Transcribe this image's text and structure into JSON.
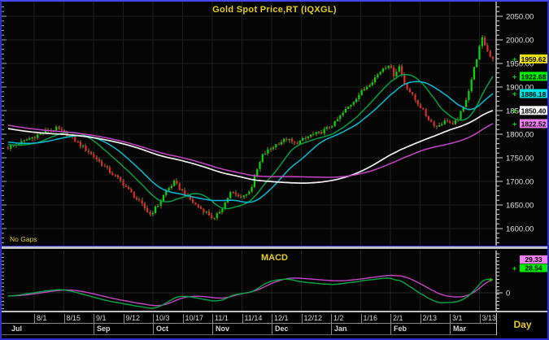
{
  "header": {
    "title": "Gold Spot Price,RT (IQXGL)"
  },
  "main_chart": {
    "no_gaps_label": "No Gaps",
    "price_axis": {
      "labels": [
        "2050.00",
        "2000.00",
        "1950.00",
        "1900.00",
        "1850.00",
        "1800.00",
        "1750.00",
        "1700.00",
        "1650.00",
        "1600.00"
      ],
      "values": [
        2050,
        2000,
        1950,
        1900,
        1850,
        1800,
        1750,
        1700,
        1650,
        1600
      ]
    },
    "badges": [
      {
        "name": "last-price-badge",
        "label": "1959.62",
        "price": 1959.62,
        "color": "#F2E200"
      },
      {
        "name": "ma-fast-badge",
        "label": "1922.68",
        "price": 1922.68,
        "color": "#00EE00"
      },
      {
        "name": "ma-medium-badge",
        "label": "1886.18",
        "price": 1886.18,
        "color": "#00E4E4"
      },
      {
        "name": "ma-slow-badge",
        "label": "1850.40",
        "price": 1850.4,
        "color": "#F6F6F6"
      },
      {
        "name": "ma-slowest-badge",
        "label": "1822.52",
        "price": 1822.52,
        "color": "#F080F0"
      }
    ]
  },
  "macd_panel": {
    "title": "MACD",
    "zero_label": "0",
    "badges": [
      {
        "name": "macd-signal-badge",
        "label": "29.33",
        "color": "#F080F0"
      },
      {
        "name": "macd-line-badge",
        "label": "28.54",
        "color": "#00EE00"
      }
    ]
  },
  "x_axis": {
    "interval_label": "Day",
    "date_ticks": [
      "8/1",
      "8/15",
      "9/1",
      "9/12",
      "10/3",
      "10/17",
      "11/1",
      "11/14",
      "12/1",
      "12/12",
      "1/2",
      "1/16",
      "2/1",
      "2/13",
      "3/1",
      "3/13"
    ],
    "months": [
      {
        "label": "Jul",
        "tick_index": -1
      },
      {
        "label": "Sep",
        "tick_index": 2
      },
      {
        "label": "Oct",
        "tick_index": 4
      },
      {
        "label": "Nov",
        "tick_index": 6
      },
      {
        "label": "Dec",
        "tick_index": 8
      },
      {
        "label": "Jan",
        "tick_index": 10
      },
      {
        "label": "Feb",
        "tick_index": 12
      },
      {
        "label": "Mar",
        "tick_index": 14
      }
    ]
  },
  "colors": {
    "background": "#050505",
    "grid": "#1E1E1E",
    "border_blue": "#2B2BD0",
    "separator_gray": "#C0C0C0",
    "axis_text": "#E0E0E0",
    "yellow_text": "#E3CE1B",
    "candle_up": "#00DC00",
    "candle_down": "#E62A2A",
    "candle_wick": "#8C7A1F"
  },
  "chart_data": {
    "type": "candlestick",
    "title": "Gold Spot Price,RT (IQXGL)",
    "interval": "Day",
    "ylim": [
      1570,
      2070
    ],
    "y_ticks": [
      1600,
      1650,
      1700,
      1750,
      1800,
      1850,
      1900,
      1950,
      2000,
      2050
    ],
    "x_tick_labels": [
      "8/1",
      "8/15",
      "9/1",
      "9/12",
      "10/3",
      "10/17",
      "11/1",
      "11/14",
      "12/1",
      "12/12",
      "1/2",
      "1/16",
      "2/1",
      "2/13",
      "3/1",
      "3/13"
    ],
    "num_candles": 182,
    "last_price": 1959.62,
    "close_anchors": [
      [
        0,
        1772
      ],
      [
        5,
        1783
      ],
      [
        10,
        1796
      ],
      [
        14,
        1806
      ],
      [
        18,
        1812
      ],
      [
        22,
        1800
      ],
      [
        26,
        1782
      ],
      [
        30,
        1763
      ],
      [
        34,
        1742
      ],
      [
        38,
        1720
      ],
      [
        42,
        1701
      ],
      [
        46,
        1675
      ],
      [
        50,
        1650
      ],
      [
        53,
        1630
      ],
      [
        56,
        1650
      ],
      [
        59,
        1680
      ],
      [
        62,
        1698
      ],
      [
        66,
        1673
      ],
      [
        70,
        1650
      ],
      [
        74,
        1634
      ],
      [
        77,
        1620
      ],
      [
        80,
        1645
      ],
      [
        83,
        1676
      ],
      [
        86,
        1668
      ],
      [
        89,
        1672
      ],
      [
        91,
        1690
      ],
      [
        93,
        1725
      ],
      [
        95,
        1755
      ],
      [
        98,
        1770
      ],
      [
        101,
        1782
      ],
      [
        104,
        1790
      ],
      [
        107,
        1780
      ],
      [
        110,
        1788
      ],
      [
        113,
        1798
      ],
      [
        116,
        1802
      ],
      [
        119,
        1812
      ],
      [
        122,
        1824
      ],
      [
        125,
        1845
      ],
      [
        128,
        1864
      ],
      [
        131,
        1884
      ],
      [
        134,
        1902
      ],
      [
        137,
        1920
      ],
      [
        140,
        1940
      ],
      [
        142,
        1948
      ],
      [
        144,
        1926
      ],
      [
        146,
        1944
      ],
      [
        148,
        1908
      ],
      [
        150,
        1890
      ],
      [
        152,
        1872
      ],
      [
        154,
        1858
      ],
      [
        156,
        1840
      ],
      [
        158,
        1826
      ],
      [
        160,
        1816
      ],
      [
        162,
        1824
      ],
      [
        164,
        1830
      ],
      [
        166,
        1818
      ],
      [
        168,
        1834
      ],
      [
        170,
        1856
      ],
      [
        172,
        1894
      ],
      [
        174,
        1940
      ],
      [
        176,
        1984
      ],
      [
        177,
        2002
      ],
      [
        178,
        1990
      ],
      [
        179,
        1976
      ],
      [
        180,
        1966
      ],
      [
        181,
        1959.62
      ]
    ],
    "moving_averages": [
      {
        "name": "ma-fast",
        "period": 15,
        "color": "#00A042",
        "last_value": 1922.68
      },
      {
        "name": "ma-medium",
        "period": 25,
        "color": "#00BCD4",
        "last_value": 1886.18
      },
      {
        "name": "ma-slow",
        "period": 85,
        "color": "#F0F0F0",
        "last_value": 1850.4
      },
      {
        "name": "ma-slowest",
        "period": 100,
        "color": "#C743C7",
        "last_value": 1822.52
      }
    ],
    "macd": {
      "fast": 12,
      "slow": 26,
      "signal_period": 9,
      "line_last": 28.54,
      "signal_last": 29.33,
      "line_color": "#00A845",
      "signal_color": "#C743C7"
    }
  }
}
